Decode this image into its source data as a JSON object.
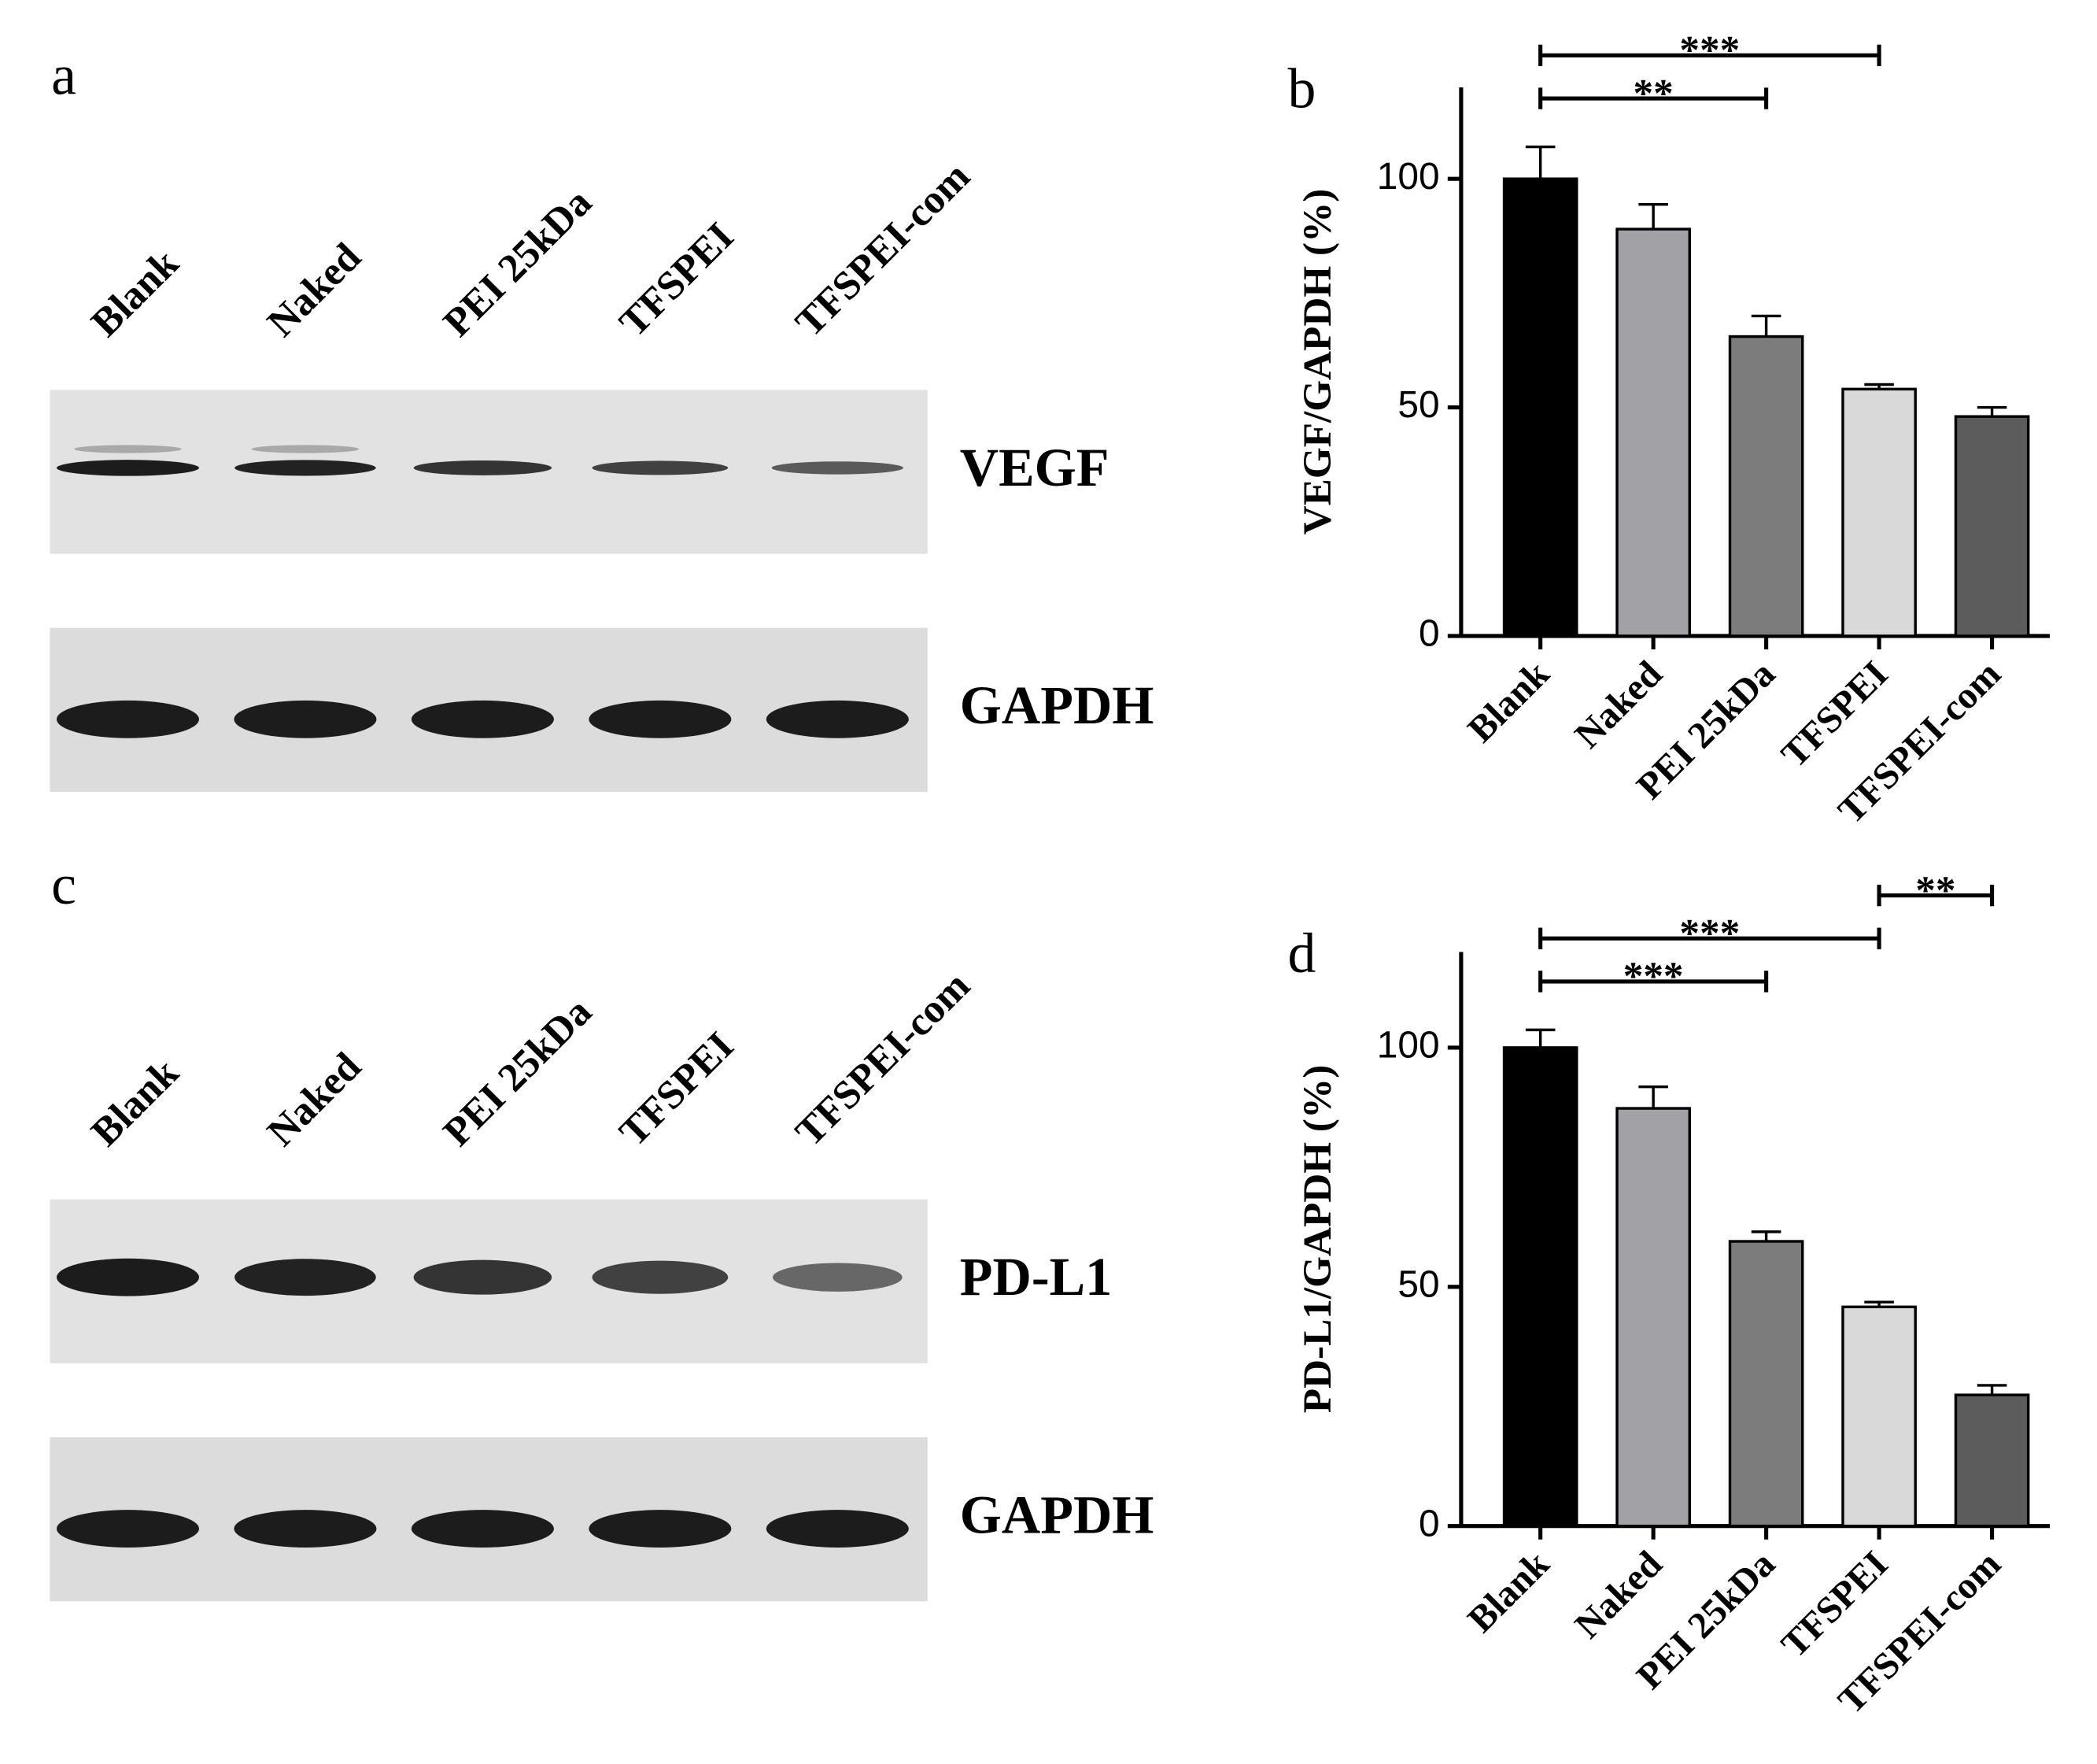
{
  "panels": [
    {
      "label": "a",
      "lanes": [
        "Blank",
        "Naked",
        "PEI 25kDa",
        "TFSPEI",
        "TFSPEI-com"
      ],
      "blots": [
        "VEGF",
        "GAPDH"
      ]
    },
    {
      "label": "c",
      "lanes": [
        "Blank",
        "Naked",
        "PEI 25kDa",
        "TFSPEI",
        "TFSPEI-com"
      ],
      "blots": [
        "PD-L1",
        "GAPDH"
      ]
    }
  ],
  "chart_data": [
    {
      "type": "bar",
      "panel": "b",
      "ylabel": "VEGF/GAPDH (%)",
      "categories": [
        "Blank",
        "Naked",
        "PEI 25kDa",
        "TFSPEI",
        "TFSPEI-com"
      ],
      "values": [
        100,
        89,
        65.5,
        54,
        48
      ],
      "errors": [
        7,
        5.4,
        4.5,
        1,
        2
      ],
      "colors": [
        "#000000",
        "#a2a2a6",
        "#7c7c7c",
        "#d9d9d9",
        "#5c5c5c"
      ],
      "ylim": [
        0,
        120
      ],
      "yticks": [
        0,
        50,
        100
      ],
      "annotations": [
        {
          "from": 0,
          "to": 2,
          "label": "**"
        },
        {
          "from": 0,
          "to": 3,
          "label": "***"
        }
      ]
    },
    {
      "type": "bar",
      "panel": "d",
      "ylabel": "PD-L1/GAPDH (%)",
      "categories": [
        "Blank",
        "Naked",
        "PEI 25kDa",
        "TFSPEI",
        "TFSPEI-com"
      ],
      "values": [
        100,
        87.3,
        59.5,
        45.8,
        27.4
      ],
      "errors": [
        3.7,
        4.5,
        2,
        1,
        2
      ],
      "colors": [
        "#000000",
        "#a2a2a6",
        "#7c7c7c",
        "#d9d9d9",
        "#5c5c5c"
      ],
      "ylim": [
        0,
        120
      ],
      "yticks": [
        0,
        50,
        100
      ],
      "annotations": [
        {
          "from": 0,
          "to": 2,
          "label": "***"
        },
        {
          "from": 0,
          "to": 3,
          "label": "***"
        },
        {
          "from": 3,
          "to": 4,
          "label": "**"
        }
      ]
    }
  ]
}
